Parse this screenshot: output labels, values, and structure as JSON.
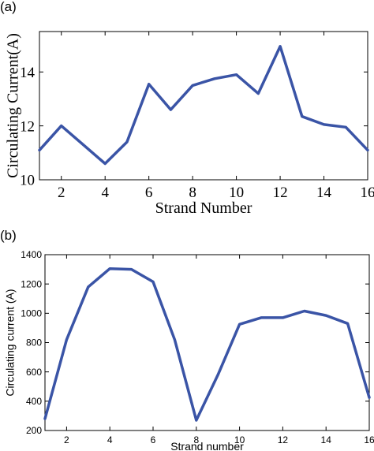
{
  "chart_data": [
    {
      "panel_label": "(a)",
      "type": "line",
      "title": "",
      "xlabel": "Strand Number",
      "ylabel": "Circulating Current(A)",
      "xlim": [
        1,
        16
      ],
      "ylim": [
        10,
        15.5
      ],
      "x_ticks": [
        2,
        4,
        6,
        8,
        10,
        12,
        14,
        16
      ],
      "x_tick_labels": [
        "2",
        "4",
        "6",
        "8",
        "10",
        "12",
        "14",
        "16"
      ],
      "y_ticks": [
        10,
        12,
        14
      ],
      "y_tick_labels": [
        "10",
        "12",
        "14"
      ],
      "grid": false,
      "line_color": "#3a54a6",
      "series": [
        {
          "x": [
            1,
            2,
            3,
            4,
            5,
            6,
            7,
            8,
            9,
            10,
            11,
            12,
            13,
            14,
            15,
            16
          ],
          "values": [
            11.1,
            12.0,
            11.3,
            10.6,
            11.4,
            13.55,
            12.6,
            13.5,
            13.75,
            13.9,
            13.2,
            14.95,
            12.35,
            12.05,
            11.95,
            11.1
          ]
        }
      ]
    },
    {
      "panel_label": "(b)",
      "type": "line",
      "title": "",
      "xlabel": "Strand number",
      "ylabel": "Circulating current (A)",
      "xlim": [
        1,
        16
      ],
      "ylim": [
        200,
        1400
      ],
      "x_ticks": [
        2,
        4,
        6,
        8,
        10,
        12,
        14,
        16
      ],
      "x_tick_labels": [
        "2",
        "4",
        "6",
        "8",
        "10",
        "12",
        "14",
        "16"
      ],
      "y_ticks": [
        200,
        400,
        600,
        800,
        1000,
        1200,
        1400
      ],
      "y_tick_labels": [
        "200",
        "400",
        "600",
        "800",
        "1000",
        "1200",
        "1400"
      ],
      "grid": false,
      "line_color": "#3a54a6",
      "series": [
        {
          "x": [
            1,
            2,
            3,
            4,
            5,
            6,
            7,
            8,
            9,
            10,
            11,
            12,
            13,
            14,
            15,
            16
          ],
          "values": [
            280,
            820,
            1180,
            1305,
            1300,
            1215,
            820,
            270,
            580,
            925,
            970,
            970,
            1015,
            985,
            930,
            425
          ]
        }
      ]
    }
  ]
}
